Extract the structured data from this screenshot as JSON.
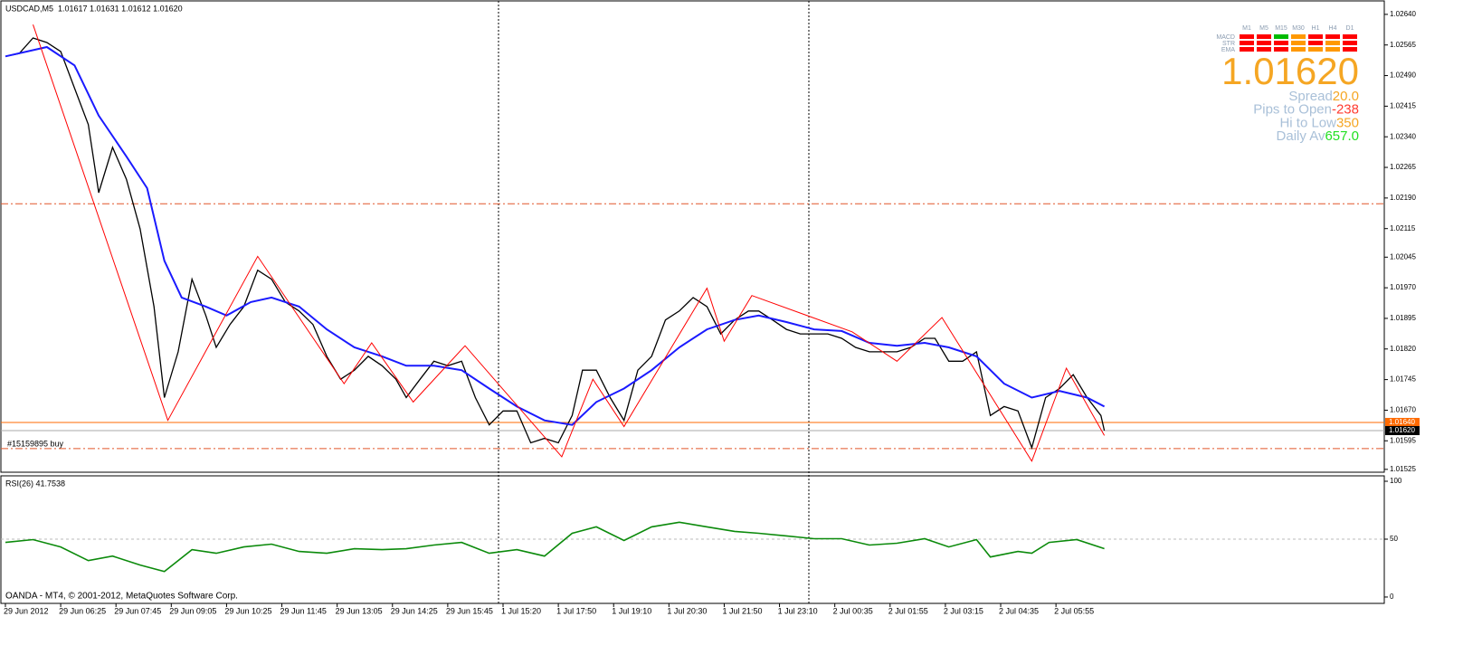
{
  "chart_data": [
    {
      "type": "line",
      "title": "USDCAD,M5  1.01617 1.01631 1.01612 1.01620",
      "annotation": "#15159895 buy",
      "xlim": [
        -1.3,
        399.0
      ],
      "ylim": [
        1.01518,
        1.02673
      ],
      "yticks": [
        {
          "value": 1.0264,
          "label": "1.02640"
        },
        {
          "value": 1.02565,
          "label": "1.02565"
        },
        {
          "value": 1.0249,
          "label": "1.02490"
        },
        {
          "value": 1.02415,
          "label": "1.02415"
        },
        {
          "value": 1.0234,
          "label": "1.02340"
        },
        {
          "value": 1.02265,
          "label": "1.02265"
        },
        {
          "value": 1.0219,
          "label": "1.02190"
        },
        {
          "value": 1.02115,
          "label": "1.02115"
        },
        {
          "value": 1.02045,
          "label": "1.02045"
        },
        {
          "value": 1.0197,
          "label": "1.01970"
        },
        {
          "value": 1.01895,
          "label": "1.01895"
        },
        {
          "value": 1.0182,
          "label": "1.01820"
        },
        {
          "value": 1.01745,
          "label": "1.01745"
        },
        {
          "value": 1.0167,
          "label": "1.01670"
        },
        {
          "value": 1.01595,
          "label": "1.01595"
        },
        {
          "value": 1.01525,
          "label": "1.01525"
        }
      ],
      "price_lines": [
        {
          "value": 1.0164,
          "label": "1.01640",
          "color": "#ff6a00"
        },
        {
          "value": 1.0162,
          "label": "1.01620",
          "color": "#000000"
        }
      ],
      "hlines": [
        1.02176,
        1.01576
      ],
      "hline_color": "#e2562a",
      "series": [
        {
          "color": "#000000",
          "width": 1.3,
          "x": [
            0,
            4,
            8,
            12,
            16,
            20,
            24,
            27,
            31,
            35,
            39,
            43,
            46,
            50,
            54,
            58,
            61,
            65,
            69,
            73,
            77,
            81,
            85,
            89,
            93,
            97,
            101,
            105,
            109,
            113,
            116,
            120,
            124,
            128,
            132,
            136,
            140,
            144,
            148,
            152,
            156,
            160,
            164,
            167,
            171,
            175,
            179,
            183,
            187,
            191,
            195,
            199,
            203,
            207,
            211,
            215,
            218,
            222,
            226,
            230,
            234,
            238,
            242,
            246,
            250,
            254,
            258,
            262,
            266,
            269,
            273,
            277,
            281,
            285,
            289,
            293,
            297,
            301,
            305,
            309,
            313,
            317,
            318
          ],
          "values": [
            1.02537,
            1.02544,
            1.02582,
            1.02571,
            1.02549,
            1.02459,
            1.0237,
            1.02203,
            1.02314,
            1.02236,
            1.02114,
            1.01924,
            1.01701,
            1.01813,
            1.01991,
            1.01902,
            1.01824,
            1.0188,
            1.01924,
            1.02013,
            1.01991,
            1.01935,
            1.01913,
            1.0188,
            1.01802,
            1.01746,
            1.01768,
            1.01802,
            1.01779,
            1.01746,
            1.01701,
            1.01746,
            1.0179,
            1.01779,
            1.0179,
            1.01701,
            1.01634,
            1.01668,
            1.01668,
            1.0159,
            1.01601,
            1.0159,
            1.01657,
            1.01768,
            1.01768,
            1.01701,
            1.01645,
            1.01768,
            1.01802,
            1.01891,
            1.01913,
            1.01946,
            1.01924,
            1.01857,
            1.01891,
            1.01913,
            1.01913,
            1.01891,
            1.01868,
            1.01857,
            1.01857,
            1.01857,
            1.01846,
            1.01824,
            1.01813,
            1.01813,
            1.01813,
            1.01824,
            1.01846,
            1.01846,
            1.0179,
            1.0179,
            1.01813,
            1.01657,
            1.01679,
            1.01668,
            1.01578,
            1.01701,
            1.01723,
            1.01757,
            1.01701,
            1.01657,
            1.0162
          ]
        },
        {
          "color": "#1a1aff",
          "width": 2,
          "x": [
            0,
            12,
            20,
            27,
            35,
            41,
            46,
            51,
            58,
            64,
            71,
            77,
            85,
            93,
            101,
            109,
            116,
            124,
            132,
            140,
            148,
            156,
            164,
            171,
            179,
            187,
            195,
            203,
            211,
            218,
            226,
            234,
            242,
            250,
            258,
            266,
            273,
            281,
            289,
            297,
            305,
            313,
            318
          ],
          "values": [
            1.02537,
            1.0256,
            1.02515,
            1.02392,
            1.02292,
            1.02214,
            1.02036,
            1.01946,
            1.01924,
            1.01902,
            1.01935,
            1.01946,
            1.01924,
            1.01868,
            1.01824,
            1.01802,
            1.01779,
            1.01779,
            1.01768,
            1.01723,
            1.01679,
            1.01645,
            1.01634,
            1.0169,
            1.01723,
            1.01768,
            1.01824,
            1.01868,
            1.01891,
            1.01902,
            1.01886,
            1.01868,
            1.01864,
            1.01835,
            1.01828,
            1.01835,
            1.01824,
            1.01802,
            1.01735,
            1.01701,
            1.01717,
            1.01701,
            1.01679
          ]
        },
        {
          "color": "#ff0000",
          "width": 1,
          "x": [
            8,
            47,
            73,
            98,
            106,
            118,
            133,
            161,
            170,
            179,
            203,
            208,
            216,
            245,
            258,
            271,
            297,
            307,
            318
          ],
          "values": [
            1.02615,
            1.01645,
            1.02047,
            1.01735,
            1.01835,
            1.0169,
            1.01828,
            1.01556,
            1.01746,
            1.0163,
            1.01969,
            1.01839,
            1.01951,
            1.01862,
            1.0179,
            1.01897,
            1.01545,
            1.01773,
            1.01608
          ]
        }
      ]
    },
    {
      "type": "line",
      "title": "RSI(26) 41.7538",
      "footer": "OANDA - MT4, © 2001-2012, MetaQuotes Software Corp.",
      "xlim": [
        -1.3,
        399.0
      ],
      "ylim": [
        -5.5,
        104.7
      ],
      "yticks": [
        100,
        50,
        0
      ],
      "levels": [
        50
      ],
      "xticks": [
        {
          "value": 0,
          "label": "29 Jun 2012"
        },
        {
          "value": 16,
          "label": "29 Jun 06:25"
        },
        {
          "value": 32,
          "label": "29 Jun 07:45"
        },
        {
          "value": 48,
          "label": "29 Jun 09:05"
        },
        {
          "value": 64,
          "label": "29 Jun 10:25"
        },
        {
          "value": 80,
          "label": "29 Jun 11:45"
        },
        {
          "value": 96,
          "label": "29 Jun 13:05"
        },
        {
          "value": 112,
          "label": "29 Jun 14:25"
        },
        {
          "value": 128,
          "label": "29 Jun 15:45"
        },
        {
          "value": 144,
          "label": "1 Jul 15:20"
        },
        {
          "value": 160,
          "label": "1 Jul 17:50"
        },
        {
          "value": 176,
          "label": "1 Jul 19:10"
        },
        {
          "value": 192,
          "label": "1 Jul 20:30"
        },
        {
          "value": 208,
          "label": "1 Jul 21:50"
        },
        {
          "value": 224,
          "label": "1 Jul 23:10"
        },
        {
          "value": 240,
          "label": "2 Jul 00:35"
        },
        {
          "value": 256,
          "label": "2 Jul 01:55"
        },
        {
          "value": 272,
          "label": "2 Jul 03:15"
        },
        {
          "value": 288,
          "label": "2 Jul 04:35"
        },
        {
          "value": 304,
          "label": "2 Jul 05:55"
        }
      ],
      "series": [
        {
          "color": "#0b8a0b",
          "width": 1.6,
          "x": [
            0,
            8,
            16,
            24,
            31,
            39,
            46,
            54,
            61,
            69,
            77,
            85,
            93,
            101,
            109,
            116,
            124,
            132,
            140,
            148,
            156,
            164,
            171,
            179,
            187,
            195,
            203,
            211,
            218,
            226,
            234,
            242,
            250,
            258,
            266,
            273,
            281,
            285,
            293,
            297,
            302,
            310,
            318
          ],
          "values": [
            47.2,
            49.6,
            43.3,
            31.5,
            35.4,
            27.6,
            22,
            40.9,
            37.8,
            43.3,
            45.7,
            39.4,
            37.8,
            41.7,
            40.9,
            41.7,
            44.9,
            47.2,
            37.8,
            40.9,
            35.4,
            55.1,
            60.6,
            48.8,
            60.6,
            64.6,
            60.6,
            56.7,
            55.1,
            52.8,
            50.4,
            50.4,
            44.9,
            46.5,
            50.4,
            43.3,
            49.6,
            34.6,
            39.4,
            37.8,
            47.2,
            49.6,
            41.8
          ]
        }
      ]
    }
  ],
  "indicator_panel": {
    "timeframes": [
      "M1",
      "M5",
      "M15",
      "M30",
      "H1",
      "H4",
      "D1"
    ],
    "rows": [
      "MACD",
      "STR",
      "EMA"
    ],
    "price": "1.01620",
    "stats": [
      {
        "label": "Spread",
        "value": "20.0",
        "color": "#f5a623"
      },
      {
        "label": "Pips to Open",
        "value": "-238",
        "color": "#ff3b30"
      },
      {
        "label": "Hi to Low",
        "value": "350",
        "color": "#f5a623"
      },
      {
        "label": "Daily Av",
        "value": "657.0",
        "color": "#22e022"
      }
    ]
  }
}
